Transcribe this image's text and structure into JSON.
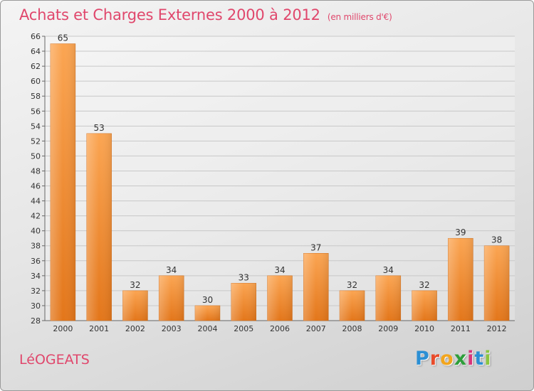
{
  "header": {
    "title": "Achats et Charges Externes 2000 à 2012",
    "subtitle": "(en milliers d'€)"
  },
  "footer": {
    "commune": "LéOGEATS",
    "logo": {
      "letters": [
        "P",
        "r",
        "o",
        "x",
        "i",
        "t",
        "i"
      ],
      "colors": [
        "#2b8fd4",
        "#e84b2a",
        "#f2a51d",
        "#2e9e3a",
        "#d8357a",
        "#2b8fd4",
        "#8bc53f"
      ]
    }
  },
  "chart_data": {
    "type": "bar",
    "title": "Achats et Charges Externes 2000 à 2012",
    "subtitle": "(en milliers d'€)",
    "categories": [
      "2000",
      "2001",
      "2002",
      "2003",
      "2004",
      "2005",
      "2006",
      "2007",
      "2008",
      "2009",
      "2010",
      "2011",
      "2012"
    ],
    "values": [
      65,
      53,
      32,
      34,
      30,
      33,
      34,
      37,
      32,
      34,
      32,
      39,
      38
    ],
    "ylim": [
      28,
      66
    ],
    "yticks": [
      28,
      30,
      32,
      34,
      36,
      38,
      40,
      42,
      44,
      46,
      48,
      50,
      52,
      54,
      56,
      58,
      60,
      62,
      64,
      66
    ],
    "grid": true,
    "bar_color": "#f08c2a"
  }
}
